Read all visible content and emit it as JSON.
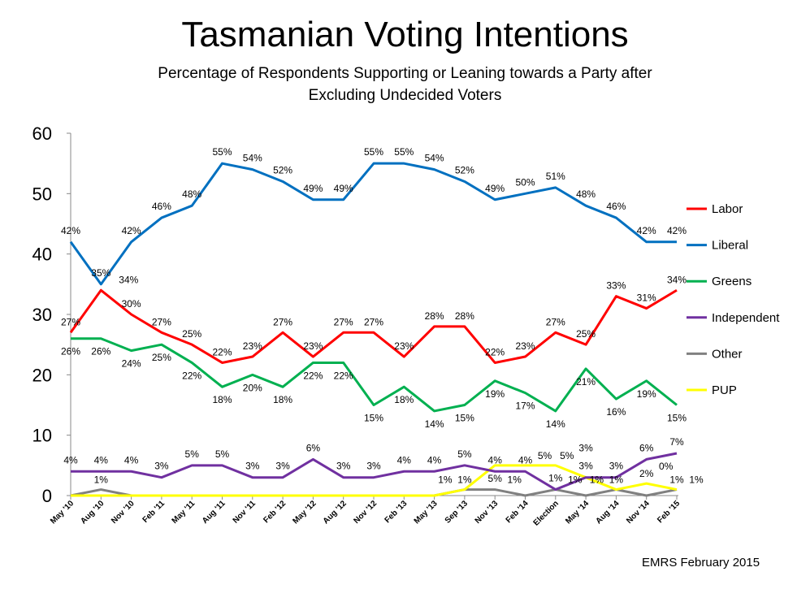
{
  "chart_data": {
    "type": "line",
    "title": "Tasmanian Voting Intentions",
    "subtitle_line1": "Percentage of Respondents Supporting or Leaning towards a Party after",
    "subtitle_line2": "Excluding Undecided Voters",
    "source": "EMRS February 2015",
    "ylim": [
      0,
      60
    ],
    "yticks": [
      "0",
      "10",
      "20",
      "30",
      "40",
      "50",
      "60"
    ],
    "grid": false,
    "legend_position": "right",
    "categories": [
      "May '10",
      "Aug '10",
      "Nov '10",
      "Feb '11",
      "May '11",
      "Aug '11",
      "Nov '11",
      "Feb '12",
      "May '12",
      "Aug '12",
      "Nov '12",
      "Feb '13",
      "May '13",
      "Sep '13",
      "Nov '13",
      "Feb '14",
      "Election",
      "May '14",
      "Aug '14",
      "Nov '14",
      "Feb '15"
    ],
    "series": [
      {
        "name": "Labor",
        "color": "#ff0000",
        "values": [
          27,
          34,
          30,
          27,
          25,
          22,
          23,
          27,
          23,
          27,
          27,
          23,
          28,
          28,
          22,
          23,
          27,
          25,
          33,
          31,
          34
        ],
        "labels": [
          "27%",
          "34%",
          "30%",
          "27%",
          "25%",
          "22%",
          "23%",
          "27%",
          "23%",
          "27%",
          "27%",
          "23%",
          "28%",
          "28%",
          "22%",
          "23%",
          "27%",
          "25%",
          "33%",
          "31%",
          "34%"
        ]
      },
      {
        "name": "Liberal",
        "color": "#0070c0",
        "values": [
          42,
          35,
          42,
          46,
          48,
          55,
          54,
          52,
          49,
          49,
          55,
          55,
          54,
          52,
          49,
          50,
          51,
          48,
          46,
          42,
          42
        ],
        "labels": [
          "42%",
          "35%",
          "42%",
          "46%",
          "48%",
          "55%",
          "54%",
          "52%",
          "49%",
          "49%",
          "55%",
          "55%",
          "54%",
          "52%",
          "49%",
          "50%",
          "51%",
          "48%",
          "46%",
          "42%",
          "42%"
        ]
      },
      {
        "name": "Greens",
        "color": "#00b050",
        "values": [
          26,
          26,
          24,
          25,
          22,
          18,
          20,
          18,
          22,
          22,
          15,
          18,
          14,
          15,
          19,
          17,
          14,
          21,
          16,
          19,
          15
        ],
        "labels": [
          "26%",
          "26%",
          "24%",
          "25%",
          "22%",
          "18%",
          "20%",
          "18%",
          "22%",
          "22%",
          "15%",
          "18%",
          "14%",
          "15%",
          "19%",
          "17%",
          "14%",
          "21%",
          "16%",
          "19%",
          "15%"
        ]
      },
      {
        "name": "Independent",
        "color": "#7030a0",
        "values": [
          4,
          4,
          4,
          3,
          5,
          5,
          3,
          3,
          6,
          3,
          3,
          4,
          4,
          5,
          4,
          4,
          1,
          3,
          3,
          6,
          7
        ],
        "labels": [
          "4%",
          "4%",
          "4%",
          "3%",
          "5%",
          "5%",
          "3%",
          "3%",
          "6%",
          "3%",
          "3%",
          "4%",
          "4%",
          "5%",
          "4%",
          "4%",
          "1%",
          "3%",
          "3%",
          "6%",
          "7%"
        ]
      },
      {
        "name": "Other",
        "color": "#808080",
        "values": [
          0,
          1,
          0,
          0,
          0,
          0,
          0,
          0,
          0,
          0,
          0,
          0,
          0,
          1,
          1,
          0,
          1,
          0,
          1,
          0,
          1
        ],
        "labels": [
          "",
          "1%",
          "",
          "",
          "",
          "",
          "",
          "",
          "",
          "",
          "",
          "",
          "",
          "1%",
          "1%",
          "",
          "1%",
          "",
          "1%",
          "0%",
          "1%"
        ]
      },
      {
        "name": "PUP",
        "color": "#ffff00",
        "values": [
          0,
          0,
          0,
          0,
          0,
          0,
          0,
          0,
          0,
          0,
          0,
          0,
          0,
          1,
          5,
          5,
          5,
          3,
          1,
          2,
          1
        ],
        "labels": [
          "",
          "",
          "",
          "",
          "",
          "",
          "",
          "",
          "",
          "",
          "",
          "",
          "",
          "1%",
          "5%",
          "5%",
          "5%",
          "3%",
          "1%",
          "2%",
          "1%"
        ]
      }
    ]
  }
}
